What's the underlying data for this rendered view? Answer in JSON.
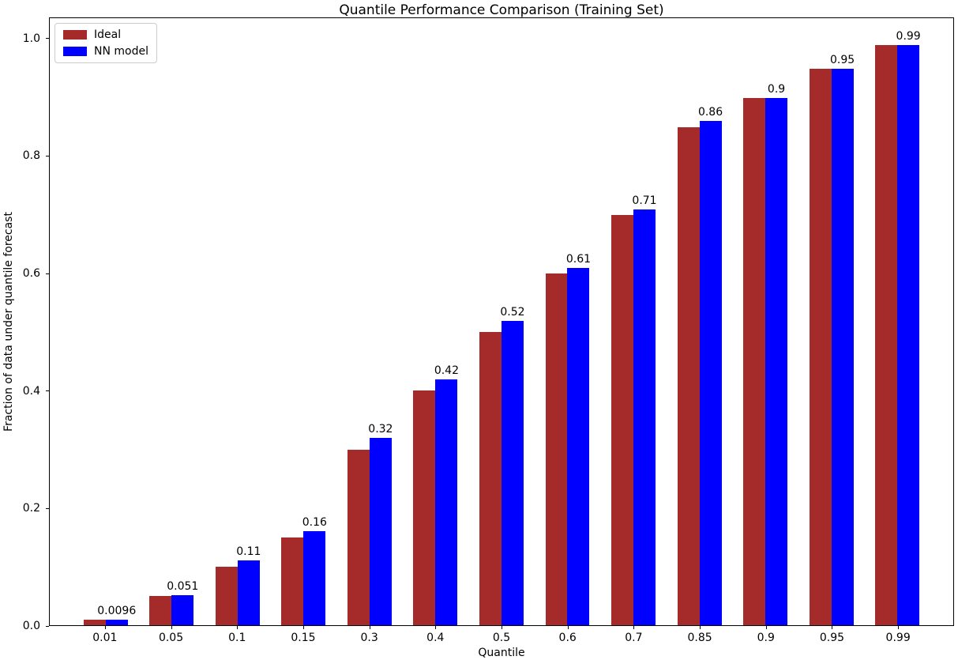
{
  "chart_data": {
    "type": "bar",
    "title": "Quantile Performance Comparison (Training Set)",
    "xlabel": "Quantile",
    "ylabel": "Fraction of data under quantile forecast",
    "categories": [
      "0.01",
      "0.05",
      "0.1",
      "0.15",
      "0.3",
      "0.4",
      "0.5",
      "0.6",
      "0.7",
      "0.85",
      "0.9",
      "0.95",
      "0.99"
    ],
    "series": [
      {
        "name": "Ideal",
        "color": "#a52a2a",
        "values": [
          0.01,
          0.05,
          0.1,
          0.15,
          0.3,
          0.4,
          0.5,
          0.6,
          0.7,
          0.85,
          0.9,
          0.95,
          0.99
        ]
      },
      {
        "name": "NN model",
        "color": "#0000ff",
        "values": [
          0.0096,
          0.051,
          0.11,
          0.16,
          0.32,
          0.42,
          0.52,
          0.61,
          0.71,
          0.86,
          0.9,
          0.95,
          0.99
        ],
        "bar_labels": [
          "0.0096",
          "0.051",
          "0.11",
          "0.16",
          "0.32",
          "0.42",
          "0.52",
          "0.61",
          "0.71",
          "0.86",
          "0.9",
          "0.95",
          "0.99"
        ]
      }
    ],
    "yticks": [
      "0.0",
      "0.2",
      "0.4",
      "0.6",
      "0.8",
      "1.0"
    ],
    "ylim": [
      0,
      1.036
    ],
    "grid": false,
    "legend_position": "upper-left"
  }
}
